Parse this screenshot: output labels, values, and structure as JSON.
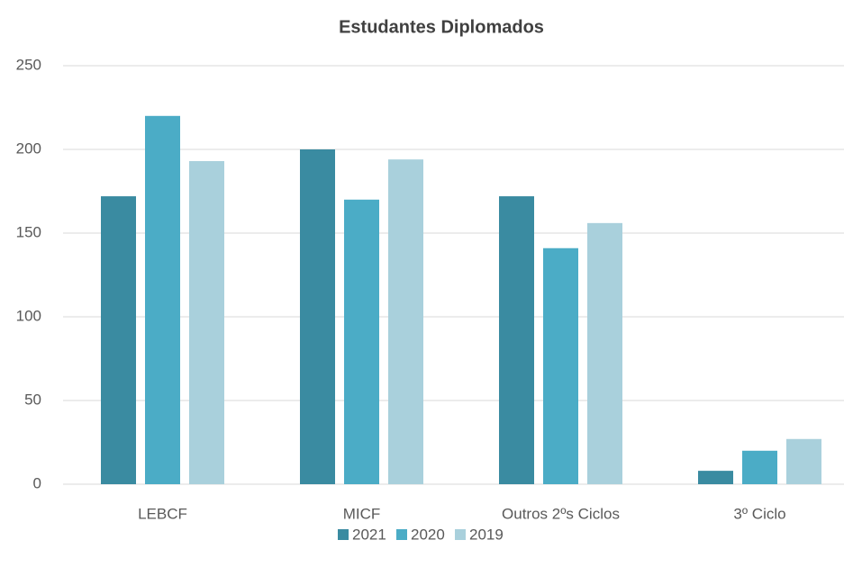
{
  "chart_data": {
    "type": "bar",
    "title": "Estudantes Diplomados",
    "categories": [
      "LEBCF",
      "MICF",
      "Outros 2ºs Ciclos",
      "3º Ciclo"
    ],
    "series": [
      {
        "name": "2021",
        "color": "#3a8ba1",
        "values": [
          172,
          200,
          172,
          8
        ]
      },
      {
        "name": "2020",
        "color": "#4bacc6",
        "values": [
          220,
          170,
          141,
          20
        ]
      },
      {
        "name": "2019",
        "color": "#a9d0dc",
        "values": [
          193,
          194,
          156,
          27
        ]
      }
    ],
    "ylim": [
      0,
      250
    ],
    "yticks": [
      0,
      50,
      100,
      150,
      200,
      250
    ],
    "grid": true,
    "legend": "bottom"
  }
}
